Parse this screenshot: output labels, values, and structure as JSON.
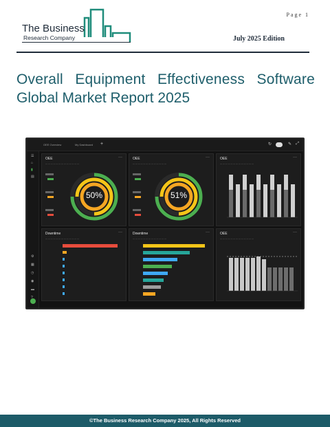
{
  "page": {
    "number_label": "Page 1"
  },
  "logo": {
    "line1": "The Business",
    "line2": "Research Company"
  },
  "edition": "July 2025 Edition",
  "title": {
    "line1": "Overall Equipment Effectiveness Software",
    "line2": "Global Market Report 2025"
  },
  "dashboard": {
    "tabs": [
      "OEE Overview",
      "My Dashboard"
    ],
    "gauges": [
      {
        "card": "OEE",
        "value": "50%",
        "accent": "#f5a623"
      },
      {
        "card": "OEE",
        "value": "51%",
        "accent": "#f5a623"
      }
    ],
    "bar_card_title": "OEE",
    "downtime_title": "Downtime",
    "colors": {
      "green": "#4caf50",
      "yellow": "#f5c518",
      "orange": "#f5a623",
      "red": "#e74c3c",
      "blue": "#3fa9f5",
      "teal": "#26a69a",
      "gray": "#9e9e9e"
    }
  },
  "footer": "©The Business Research Company 2025, All Rights Reserved"
}
